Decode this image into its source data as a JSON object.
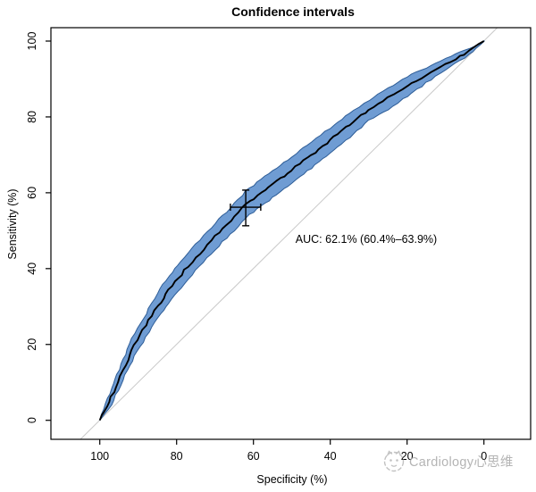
{
  "chart_data": {
    "type": "line",
    "title": "Confidence intervals",
    "xlabel": "Specificity (%)",
    "ylabel": "Sensitivity (%)",
    "x_ticks": [
      100,
      80,
      60,
      40,
      20,
      0
    ],
    "y_ticks": [
      0,
      20,
      40,
      60,
      80,
      100
    ],
    "xlim": [
      100,
      0
    ],
    "ylim": [
      0,
      100
    ],
    "x_axis_reversed": true,
    "grid": false,
    "diagonal_reference_line": true,
    "auc": {
      "value_pct": 62.1,
      "ci_low_pct": 60.4,
      "ci_high_pct": 63.9,
      "label": "AUC: 62.1% (60.4%–63.9%)"
    },
    "roc_curve": {
      "specificity": [
        100,
        97,
        94,
        91,
        88,
        85,
        82,
        78,
        74,
        70,
        66,
        62,
        58,
        54,
        50,
        45,
        40,
        35,
        30,
        25,
        20,
        15,
        10,
        5,
        0
      ],
      "sensitivity": [
        0,
        6,
        13,
        20,
        25,
        30,
        34.5,
        39.5,
        44,
        48.5,
        52.5,
        57,
        60,
        63,
        66,
        70,
        74,
        78,
        82,
        85,
        88,
        91,
        94,
        96.5,
        100
      ],
      "sensitivity_ci_low": [
        0,
        4,
        10.5,
        17,
        22,
        27,
        31,
        36,
        40.5,
        45,
        49,
        53.5,
        56.5,
        59.5,
        62.5,
        66.5,
        70.5,
        74.5,
        79,
        82,
        85.5,
        89,
        92.5,
        95.5,
        100
      ],
      "sensitivity_ci_high": [
        0,
        8.5,
        16,
        23,
        28,
        33.5,
        38,
        43,
        47.5,
        52,
        56,
        60.5,
        63.5,
        66.5,
        69.5,
        73.5,
        77,
        81,
        84.5,
        87.5,
        90.5,
        93,
        95.5,
        97.5,
        100
      ]
    },
    "best_threshold_point": {
      "specificity": 62.0,
      "sensitivity": 56.2,
      "specificity_ci": [
        58.1,
        66.0
      ],
      "sensitivity_ci": [
        51.3,
        60.7
      ]
    },
    "legend_position": "none",
    "colors": {
      "ci_band_fill": "#6f9cd3",
      "ci_band_border": "#2e5d97",
      "roc_curve": "#000000",
      "diagonal": "#c9c9c9",
      "axis": "#000000",
      "marker": "#000000",
      "watermark": "#a8a8a8"
    }
  },
  "watermark": {
    "text": "Cardiology心思维",
    "logo_icon": "cat-doodle-icon"
  }
}
